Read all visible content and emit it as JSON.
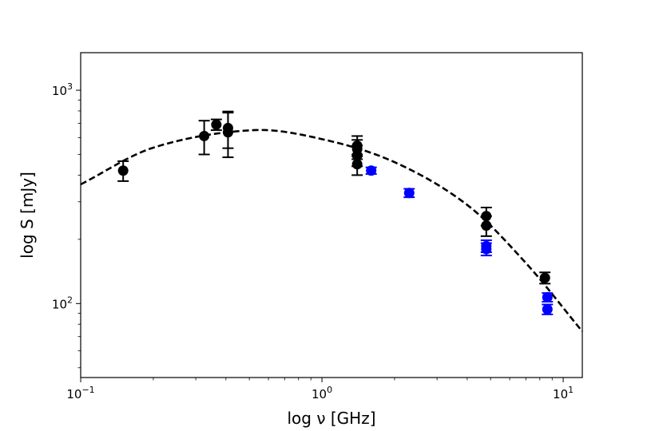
{
  "chart_data": {
    "type": "scatter",
    "title": "",
    "xlabel": "log ν [GHz]",
    "ylabel": "log S [mJy]",
    "x_scale": "log",
    "y_scale": "log",
    "xlim": [
      0.1,
      12
    ],
    "ylim": [
      45,
      1500
    ],
    "grid": false,
    "x_ticks": [
      {
        "value": 0.1,
        "base": "10",
        "exp": "−1"
      },
      {
        "value": 1,
        "base": "10",
        "exp": "0"
      },
      {
        "value": 10,
        "base": "10",
        "exp": "1"
      }
    ],
    "y_ticks": [
      {
        "value": 100,
        "base": "10",
        "exp": "2"
      },
      {
        "value": 1000,
        "base": "10",
        "exp": "3"
      }
    ],
    "series": [
      {
        "color": "#000000",
        "points": [
          {
            "x": 0.15,
            "y": 420,
            "err": 45
          },
          {
            "x": 0.325,
            "y": 610,
            "err": 110
          },
          {
            "x": 0.365,
            "y": 690,
            "err": 40
          },
          {
            "x": 0.408,
            "y": 665,
            "err": 130
          },
          {
            "x": 0.408,
            "y": 635,
            "err": 150
          },
          {
            "x": 1.4,
            "y": 550,
            "err": 60
          },
          {
            "x": 1.4,
            "y": 530,
            "err": 55
          },
          {
            "x": 1.4,
            "y": 495,
            "err": 55
          },
          {
            "x": 1.4,
            "y": 450,
            "err": 50
          },
          {
            "x": 4.8,
            "y": 257,
            "err": 25
          },
          {
            "x": 4.8,
            "y": 232,
            "err": 25
          },
          {
            "x": 8.4,
            "y": 132,
            "err": 8
          }
        ]
      },
      {
        "color": "#0000ff",
        "points": [
          {
            "x": 1.6,
            "y": 420,
            "err": 15
          },
          {
            "x": 2.3,
            "y": 330,
            "err": 15
          },
          {
            "x": 4.8,
            "y": 186,
            "err": 12
          },
          {
            "x": 4.8,
            "y": 180,
            "err": 12
          },
          {
            "x": 8.6,
            "y": 107,
            "err": 5
          },
          {
            "x": 8.6,
            "y": 94,
            "err": 5
          }
        ]
      }
    ],
    "fit_curve": {
      "style": "dashed",
      "color": "#000000",
      "peak_x": 0.52,
      "peak_y": 650,
      "points": [
        {
          "x": 0.1,
          "y": 362
        },
        {
          "x": 0.2,
          "y": 538
        },
        {
          "x": 0.52,
          "y": 650
        },
        {
          "x": 1.0,
          "y": 590
        },
        {
          "x": 2.0,
          "y": 460
        },
        {
          "x": 4.0,
          "y": 290
        },
        {
          "x": 7.0,
          "y": 155
        },
        {
          "x": 12.0,
          "y": 74
        }
      ]
    }
  }
}
